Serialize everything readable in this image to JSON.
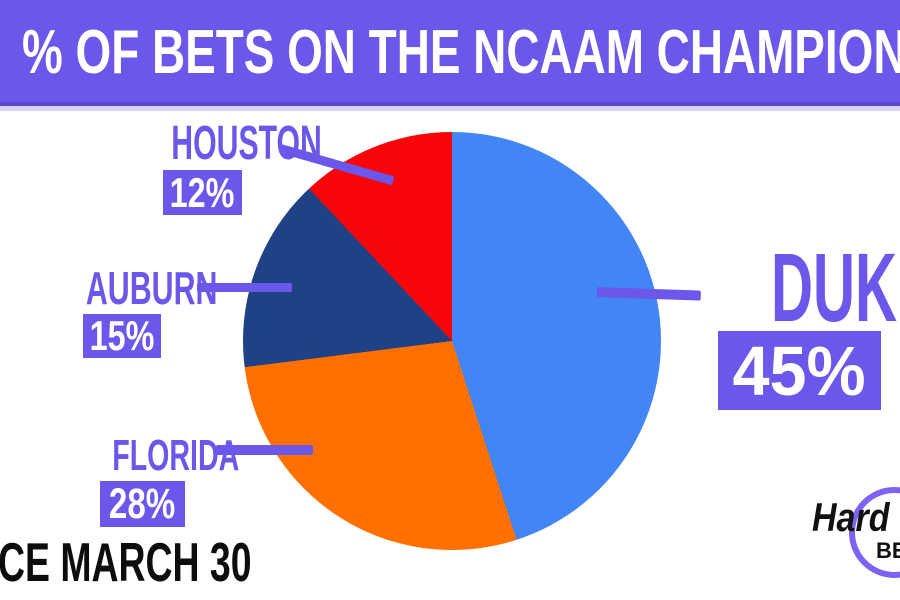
{
  "banner": {
    "title": "% OF BETS ON THE NCAAM CHAMPION"
  },
  "chart_data": {
    "type": "pie",
    "title": "% OF BETS ON THE NCAAM CHAMPION",
    "categories": [
      "DUKE",
      "FLORIDA",
      "AUBURN",
      "HOUSTON"
    ],
    "values": [
      45,
      28,
      15,
      12
    ],
    "unit": "%",
    "slice_colors": [
      "#4285F4",
      "#FF7000",
      "#1F4287",
      "#F90409"
    ],
    "start_angle_deg": 0,
    "direction": "clockwise",
    "legend_position": "callout-labels-around-pie"
  },
  "labels": {
    "duke": {
      "name": "DUKE",
      "pct": "45%"
    },
    "florida": {
      "name": "FLORIDA",
      "pct": "28%"
    },
    "auburn": {
      "name": "AUBURN",
      "pct": "15%"
    },
    "houston": {
      "name": "HOUSTON",
      "pct": "12%"
    }
  },
  "footer": {
    "date_note": "CE MARCH 30"
  },
  "logo": {
    "word_hard": "Hard",
    "word_bet": "BE"
  },
  "colors": {
    "purple": "#6B57E9",
    "purple_dark": "#5A48CB",
    "purple_pale": "#D8D2F7",
    "purple_light": "#7D62F3",
    "duke_blue": "#4285F4",
    "florida_orange": "#FF7000",
    "auburn_navy": "#1F4287",
    "houston_red": "#F90409",
    "banner_text": "#FFFFFF",
    "badge_text": "#FFFFFF",
    "footer_text": "#0D0D0D"
  }
}
